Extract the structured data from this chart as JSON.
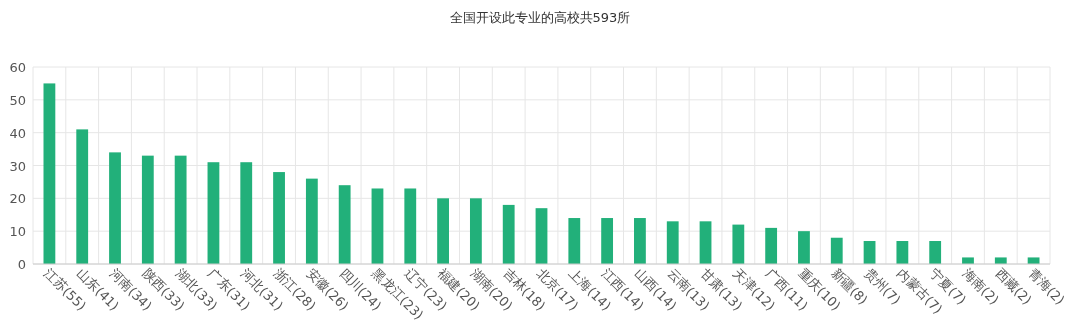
{
  "chart_data": {
    "type": "bar",
    "title": "全国开设此专业的高校共593所",
    "categories": [
      "江苏(55)",
      "山东(41)",
      "河南(34)",
      "陕西(33)",
      "湖北(33)",
      "广东(31)",
      "河北(31)",
      "浙江(28)",
      "安徽(26)",
      "四川(24)",
      "黑龙江(23)",
      "辽宁(23)",
      "福建(20)",
      "湖南(20)",
      "吉林(18)",
      "北京(17)",
      "上海(14)",
      "江西(14)",
      "山西(14)",
      "云南(13)",
      "甘肃(13)",
      "天津(12)",
      "广西(11)",
      "重庆(10)",
      "新疆(8)",
      "贵州(7)",
      "内蒙古(7)",
      "宁夏(7)",
      "海南(2)",
      "西藏(2)",
      "青海(2)"
    ],
    "values": [
      55,
      41,
      34,
      33,
      33,
      31,
      31,
      28,
      26,
      24,
      23,
      23,
      20,
      20,
      18,
      17,
      14,
      14,
      14,
      13,
      13,
      12,
      11,
      10,
      8,
      7,
      7,
      7,
      2,
      2,
      2
    ],
    "color": "#22b07a",
    "ylim": [
      0,
      60
    ],
    "yticks": [
      0,
      10,
      20,
      30,
      40,
      50,
      60
    ],
    "grid": true
  }
}
